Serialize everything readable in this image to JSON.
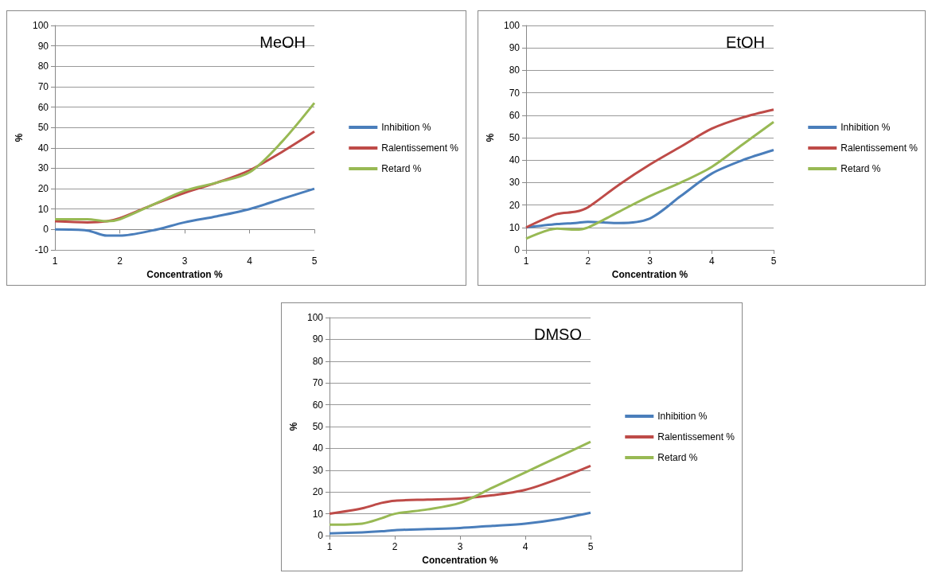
{
  "chart_data": [
    {
      "type": "line",
      "title": "MeOH",
      "xlabel": "Concentration %",
      "ylabel": "%",
      "x": [
        1,
        1.5,
        1.8,
        2,
        2.5,
        3,
        3.5,
        4,
        4.5,
        5
      ],
      "xlim": [
        1,
        5
      ],
      "xticks": [
        1,
        2,
        3,
        4,
        5
      ],
      "ylim": [
        -10,
        100
      ],
      "yticks": [
        -10,
        0,
        10,
        20,
        30,
        40,
        50,
        60,
        70,
        80,
        90,
        100
      ],
      "grid": "y",
      "legend": "right",
      "marker": "none",
      "series": [
        {
          "name": "Inhibition %",
          "color": "#4a7ebb",
          "values": [
            0,
            -0.5,
            -3,
            -3,
            -0.5,
            3.5,
            6.5,
            10,
            15,
            20
          ]
        },
        {
          "name": "Ralentissement %",
          "color": "#be4b48",
          "values": [
            4,
            3.5,
            4,
            5.5,
            12,
            18,
            23,
            29,
            38,
            48
          ]
        },
        {
          "name": "Retard %",
          "color": "#98b954",
          "values": [
            5,
            5,
            4,
            5,
            12,
            19,
            23,
            28,
            43,
            62
          ]
        }
      ]
    },
    {
      "type": "line",
      "title": "EtOH",
      "xlabel": "Concentration %",
      "ylabel": "%",
      "x": [
        1,
        1.5,
        1.8,
        2,
        2.5,
        3,
        3.5,
        4,
        4.5,
        5
      ],
      "xlim": [
        1,
        5
      ],
      "xticks": [
        1,
        2,
        3,
        4,
        5
      ],
      "ylim": [
        0,
        100
      ],
      "yticks": [
        0,
        10,
        20,
        30,
        40,
        50,
        60,
        70,
        80,
        90,
        100
      ],
      "grid": "y",
      "legend": "right",
      "marker": "none",
      "series": [
        {
          "name": "Inhibition %",
          "color": "#4a7ebb",
          "values": [
            10,
            11.5,
            12,
            12.5,
            12,
            14,
            24,
            34,
            40,
            44.5
          ]
        },
        {
          "name": "Ralentissement %",
          "color": "#be4b48",
          "values": [
            10,
            16,
            17,
            19,
            29,
            38,
            46,
            54,
            59,
            62.5
          ]
        },
        {
          "name": "Retard %",
          "color": "#98b954",
          "values": [
            5,
            9.5,
            9,
            10,
            17,
            24,
            30,
            37,
            47,
            57
          ]
        }
      ]
    },
    {
      "type": "line",
      "title": "DMSO",
      "xlabel": "Concentration %",
      "ylabel": "%",
      "x": [
        1,
        1.5,
        1.8,
        2,
        2.5,
        3,
        3.5,
        4,
        4.5,
        5
      ],
      "xlim": [
        1,
        5
      ],
      "xticks": [
        1,
        2,
        3,
        4,
        5
      ],
      "ylim": [
        0,
        100
      ],
      "yticks": [
        0,
        10,
        20,
        30,
        40,
        50,
        60,
        70,
        80,
        90,
        100
      ],
      "grid": "y",
      "legend": "right",
      "marker": "none",
      "series": [
        {
          "name": "Inhibition %",
          "color": "#4a7ebb",
          "values": [
            1,
            1.5,
            2,
            2.5,
            3,
            3.5,
            4.5,
            5.5,
            7.5,
            10.5
          ]
        },
        {
          "name": "Ralentissement %",
          "color": "#be4b48",
          "values": [
            10,
            12.5,
            15,
            16,
            16.5,
            17,
            18.5,
            21,
            26,
            32
          ]
        },
        {
          "name": "Retard %",
          "color": "#98b954",
          "values": [
            5,
            5.5,
            8,
            10,
            12,
            15,
            22,
            29,
            36,
            43
          ]
        }
      ]
    }
  ]
}
